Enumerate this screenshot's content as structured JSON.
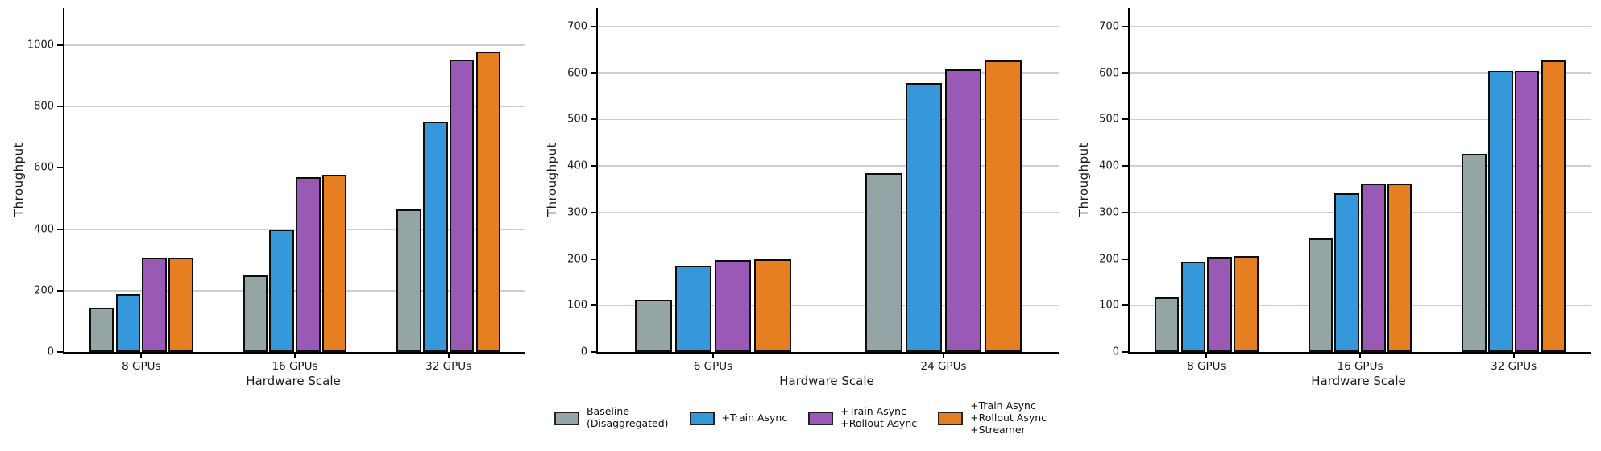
{
  "figure": {
    "background": "#ffffff",
    "grid_color": "#cfcfcf",
    "axis_color": "#000000",
    "bar_edge_color": "#0d0d0d"
  },
  "legend": {
    "items": [
      {
        "label": "Baseline\n(Disaggregated)",
        "color": "#95a5a6"
      },
      {
        "label": "+Train Async",
        "color": "#3498db"
      },
      {
        "label": "+Train Async\n+Rollout Async",
        "color": "#9b59b6"
      },
      {
        "label": "+Train Async\n+Rollout Async\n+Streamer",
        "color": "#e67e22"
      }
    ]
  },
  "chart_data": [
    {
      "type": "bar",
      "title": "",
      "xlabel": "Hardware Scale",
      "ylabel": "Throughput",
      "categories": [
        "8 GPUs",
        "16 GPUs",
        "32 GPUs"
      ],
      "ylim": [
        0,
        1120
      ],
      "yticks": [
        0,
        200,
        400,
        600,
        800,
        1000
      ],
      "grid": "horizontal",
      "legend_position": "figure-bottom",
      "series": [
        {
          "name": "Baseline (Disaggregated)",
          "color": "#95a5a6",
          "values": [
            145,
            250,
            465
          ]
        },
        {
          "name": "+Train Async",
          "color": "#3498db",
          "values": [
            190,
            398,
            750
          ]
        },
        {
          "name": "+Train Async +Rollout Async",
          "color": "#9b59b6",
          "values": [
            308,
            568,
            952
          ]
        },
        {
          "name": "+Train Async +Rollout Async +Streamer",
          "color": "#e67e22",
          "values": [
            308,
            578,
            978
          ]
        }
      ]
    },
    {
      "type": "bar",
      "title": "",
      "xlabel": "Hardware Scale",
      "ylabel": "Throughput",
      "categories": [
        "6 GPUs",
        "24 GPUs"
      ],
      "ylim": [
        0,
        740
      ],
      "yticks": [
        0,
        100,
        200,
        300,
        400,
        500,
        600,
        700
      ],
      "grid": "horizontal",
      "legend_position": "figure-bottom",
      "series": [
        {
          "name": "Baseline (Disaggregated)",
          "color": "#95a5a6",
          "values": [
            113,
            385
          ]
        },
        {
          "name": "+Train Async",
          "color": "#3498db",
          "values": [
            185,
            578
          ]
        },
        {
          "name": "+Train Async +Rollout Async",
          "color": "#9b59b6",
          "values": [
            198,
            608
          ]
        },
        {
          "name": "+Train Async +Rollout Async +Streamer",
          "color": "#e67e22",
          "values": [
            200,
            627
          ]
        }
      ]
    },
    {
      "type": "bar",
      "title": "",
      "xlabel": "Hardware Scale",
      "ylabel": "Throughput",
      "categories": [
        "8 GPUs",
        "16 GPUs",
        "32 GPUs"
      ],
      "ylim": [
        0,
        740
      ],
      "yticks": [
        0,
        100,
        200,
        300,
        400,
        500,
        600,
        700
      ],
      "grid": "horizontal",
      "legend_position": "figure-bottom",
      "series": [
        {
          "name": "Baseline (Disaggregated)",
          "color": "#95a5a6",
          "values": [
            118,
            244,
            426
          ]
        },
        {
          "name": "+Train Async",
          "color": "#3498db",
          "values": [
            194,
            342,
            604
          ]
        },
        {
          "name": "+Train Async +Rollout Async",
          "color": "#9b59b6",
          "values": [
            205,
            363,
            604
          ]
        },
        {
          "name": "+Train Async +Rollout Async +Streamer",
          "color": "#e67e22",
          "values": [
            207,
            362,
            627
          ]
        }
      ]
    }
  ]
}
